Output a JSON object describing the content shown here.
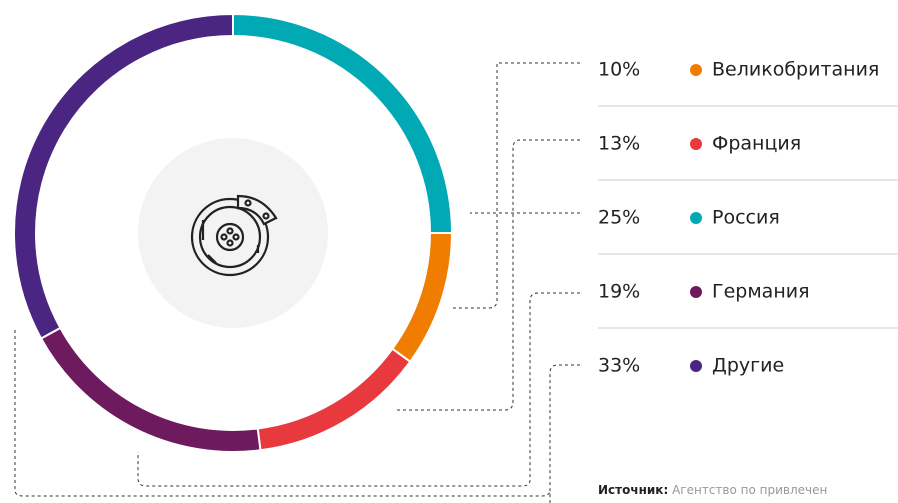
{
  "chart_data": {
    "type": "pie",
    "donut": true,
    "categories": [
      "Великобритания",
      "Франция",
      "Россия",
      "Германия",
      "Другие"
    ],
    "values": [
      10,
      13,
      25,
      19,
      33
    ],
    "value_labels": [
      "10%",
      "13%",
      "25%",
      "19%",
      "33%"
    ],
    "colors": [
      "#f07d00",
      "#e8393f",
      "#00a9b4",
      "#6d1a5e",
      "#4b2582"
    ],
    "source_label": "Источник:",
    "source": "Агентство по привлечен"
  }
}
